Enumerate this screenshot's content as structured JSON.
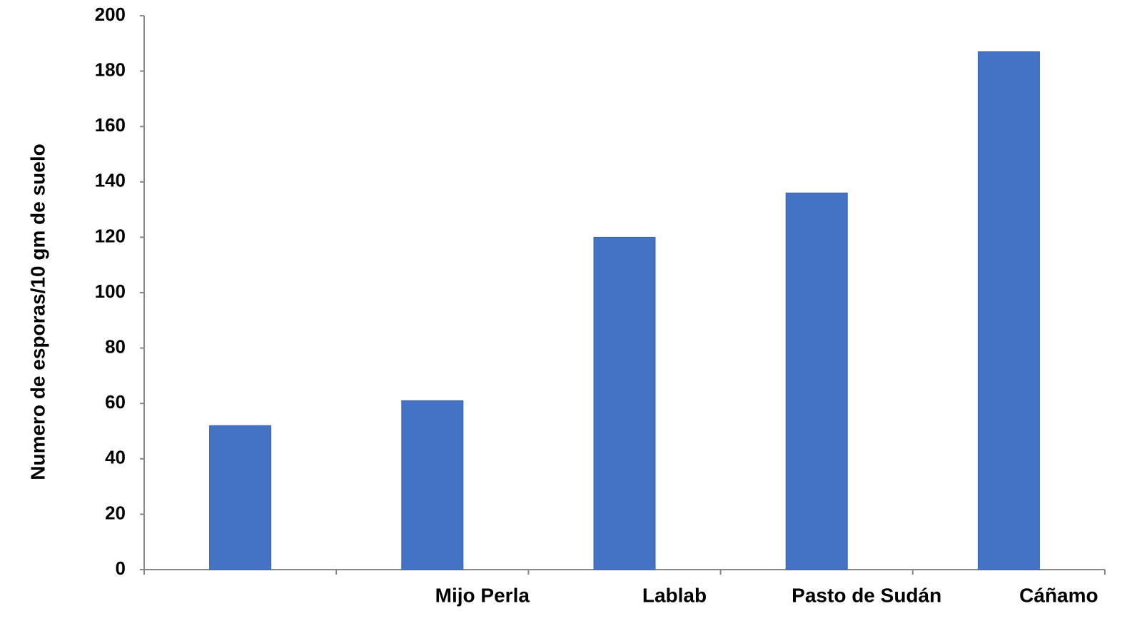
{
  "chart_data": {
    "type": "bar",
    "y_label": "Numero de esporas/10 gm de suelo",
    "categories": [
      null,
      "Mijo Perla",
      "Lablab",
      "Pasto de Sudán",
      "Cáñamo"
    ],
    "values": [
      52,
      61,
      120,
      136,
      187
    ],
    "color": "#4472c4",
    "ylim": [
      0,
      200
    ],
    "yticks": [
      0,
      20,
      40,
      60,
      80,
      100,
      120,
      140,
      160,
      180,
      200
    ],
    "grid": false
  }
}
